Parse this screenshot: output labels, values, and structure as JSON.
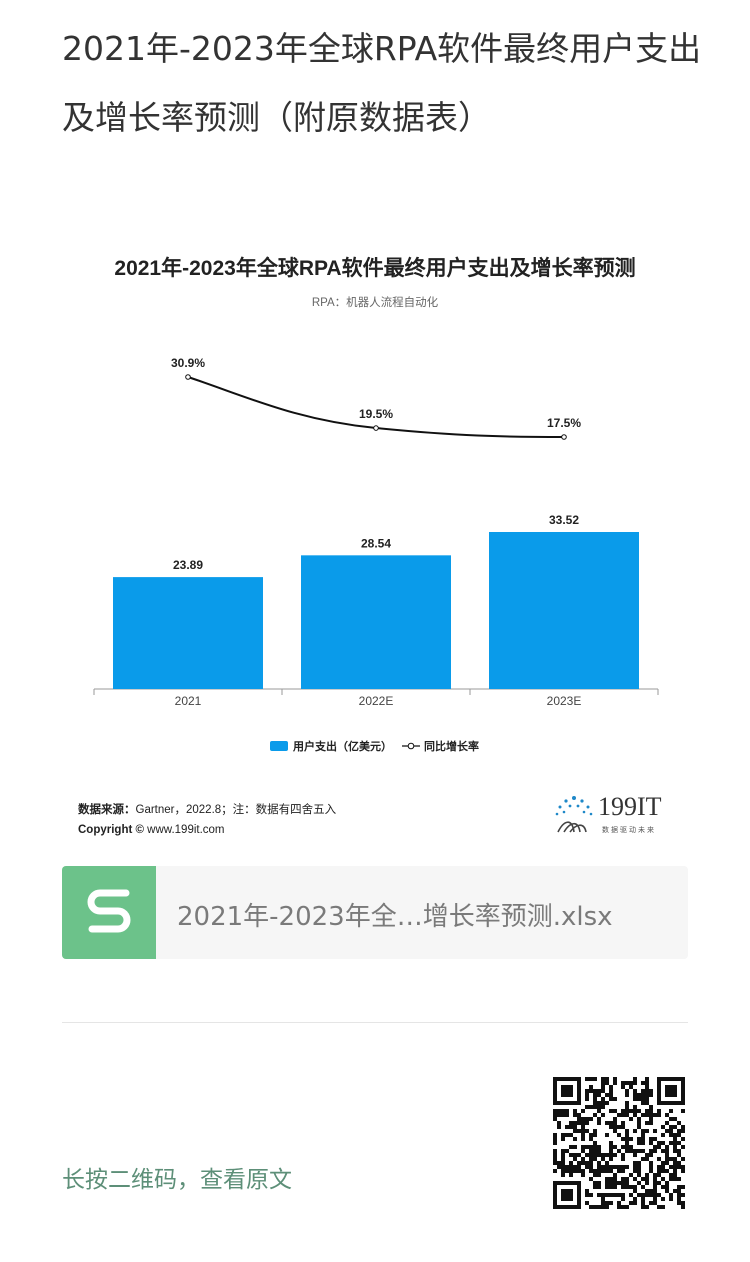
{
  "article": {
    "title": "2021年-2023年全球RPA软件最终用户支出及增长率预测（附原数据表）"
  },
  "chart_data": {
    "type": "bar",
    "title": "2021年-2023年全球RPA软件最终用户支出及增长率预测",
    "subtitle": "RPA：机器人流程自动化",
    "categories": [
      "2021",
      "2022E",
      "2023E"
    ],
    "series": [
      {
        "name": "用户支出（亿美元）",
        "type": "bar",
        "values": [
          23.89,
          28.54,
          33.52
        ],
        "value_labels": [
          "23.89",
          "28.54",
          "33.52"
        ],
        "color": "#0a9bea"
      },
      {
        "name": "同比增长率",
        "type": "line",
        "values": [
          30.9,
          19.5,
          17.5
        ],
        "value_labels": [
          "30.9%",
          "19.5%",
          "17.5%"
        ],
        "color": "#111111"
      }
    ],
    "grid": false,
    "legend_position": "bottom-center"
  },
  "source": {
    "label": "数据来源：",
    "text": "Gartner，2022.8；注：数据有四舍五入",
    "copyright_label": "Copyright ©",
    "copyright_text": "www.199it.com"
  },
  "brand": {
    "name": "199IT",
    "tagline": "数据驱动未来"
  },
  "attachment": {
    "file_name": "2021年-2023年全…增长率预测.xlsx",
    "icon": "spreadsheet-icon",
    "icon_color": "#6cc28a"
  },
  "footer": {
    "qr_hint": "长按二维码，查看原文",
    "qr_icon": "qr-code-icon"
  }
}
